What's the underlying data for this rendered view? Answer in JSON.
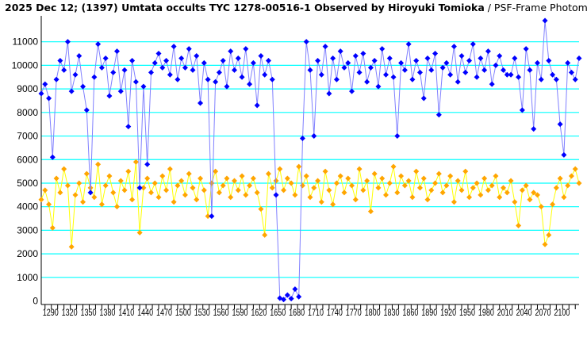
{
  "chart_data": {
    "type": "line",
    "title": "2025 Dec 12; (1397) Umtata occults TYC 1278-00516-1 Observed by Hiroyuki Tomioka",
    "subtitle": "/ PSF-Frame Photometry /",
    "xlabel": "",
    "ylabel": "",
    "xlim": [
      1284,
      2136
    ],
    "ylim": [
      -150,
      12100
    ],
    "grid": true,
    "grid_color": "#00ffff",
    "yticks": [
      0,
      1000,
      2000,
      3000,
      4000,
      5000,
      6000,
      7000,
      8000,
      9000,
      10000,
      11000
    ],
    "xticks": [
      1290,
      1320,
      1350,
      1380,
      1410,
      1440,
      1470,
      1500,
      1530,
      1560,
      1590,
      1620,
      1650,
      1680,
      1710,
      1740,
      1770,
      1800,
      1830,
      1860,
      1890,
      1920,
      1950,
      1980,
      2010,
      2040,
      2070,
      2100
    ],
    "x": [
      1284,
      1290,
      1296,
      1302,
      1308,
      1314,
      1320,
      1326,
      1332,
      1338,
      1344,
      1350,
      1356,
      1362,
      1368,
      1374,
      1380,
      1386,
      1392,
      1398,
      1404,
      1410,
      1416,
      1422,
      1428,
      1434,
      1440,
      1446,
      1452,
      1458,
      1464,
      1470,
      1476,
      1482,
      1488,
      1494,
      1500,
      1506,
      1512,
      1518,
      1524,
      1530,
      1536,
      1542,
      1548,
      1554,
      1560,
      1566,
      1572,
      1578,
      1584,
      1590,
      1596,
      1602,
      1608,
      1614,
      1620,
      1626,
      1632,
      1638,
      1644,
      1650,
      1656,
      1662,
      1668,
      1674,
      1680,
      1686,
      1692,
      1698,
      1704,
      1710,
      1716,
      1722,
      1728,
      1734,
      1740,
      1746,
      1752,
      1758,
      1764,
      1770,
      1776,
      1782,
      1788,
      1794,
      1800,
      1806,
      1812,
      1818,
      1824,
      1830,
      1836,
      1842,
      1848,
      1854,
      1860,
      1866,
      1872,
      1878,
      1884,
      1890,
      1896,
      1902,
      1908,
      1914,
      1920,
      1926,
      1932,
      1938,
      1944,
      1950,
      1956,
      1962,
      1968,
      1974,
      1980,
      1986,
      1992,
      1998,
      2004,
      2010,
      2016,
      2022,
      2028,
      2034,
      2040,
      2046,
      2052,
      2058,
      2064,
      2070,
      2076,
      2082,
      2088,
      2094,
      2100,
      2106,
      2112,
      2118,
      2124,
      2130,
      2136
    ],
    "series": [
      {
        "color": "#0000ff",
        "line_color": "#8080ff",
        "values": [
          8800,
          9200,
          8600,
          6100,
          9400,
          10200,
          9800,
          11000,
          8900,
          9600,
          10400,
          9100,
          8100,
          4600,
          9500,
          10900,
          9900,
          10300,
          8700,
          9700,
          10600,
          8900,
          9800,
          7400,
          10200,
          9300,
          4800,
          9100,
          5800,
          9700,
          10100,
          10500,
          9900,
          10200,
          9600,
          10800,
          9400,
          10300,
          9900,
          10700,
          9800,
          10400,
          8400,
          10100,
          9400,
          3600,
          9300,
          9700,
          10200,
          9100,
          10600,
          9800,
          10300,
          9500,
          10700,
          9200,
          10100,
          8300,
          10400,
          9600,
          10200,
          9400,
          4500,
          120,
          60,
          250,
          100,
          500,
          180,
          6900,
          11000,
          9800,
          7000,
          10200,
          9600,
          10800,
          8800,
          10300,
          9400,
          10600,
          9900,
          10100,
          8900,
          10400,
          9700,
          10500,
          9300,
          9900,
          10200,
          9100,
          10700,
          9600,
          10300,
          9500,
          7000,
          10100,
          9800,
          10900,
          9400,
          10200,
          9700,
          8600,
          10300,
          9800,
          10500,
          7900,
          9900,
          10100,
          9600,
          10800,
          9300,
          10400,
          9700,
          10200,
          10900,
          9500,
          10300,
          9800,
          10600,
          9200,
          10000,
          10400,
          9800,
          9600,
          9600,
          10300,
          9500,
          8100,
          10700,
          9800,
          7300,
          10100,
          9400,
          11900,
          10200,
          9600,
          9400,
          7500,
          6200,
          10100,
          9700,
          9400,
          10300
        ]
      },
      {
        "color": "#ffa500",
        "line_color": "#ffff00",
        "values": [
          4300,
          4700,
          4100,
          3100,
          5200,
          4600,
          5600,
          4900,
          2300,
          4500,
          5000,
          4200,
          5400,
          4800,
          4400,
          5800,
          4100,
          4900,
          5300,
          4600,
          4000,
          5100,
          4700,
          5500,
          4300,
          5900,
          2900,
          4800,
          5200,
          4600,
          5000,
          4400,
          5300,
          4700,
          5600,
          4200,
          4900,
          5100,
          4500,
          5400,
          4800,
          4300,
          5200,
          4700,
          3600,
          5000,
          5500,
          4600,
          4900,
          5200,
          4400,
          5100,
          4700,
          5300,
          4500,
          4900,
          5200,
          4600,
          3900,
          2800,
          5400,
          4800,
          5100,
          5600,
          4700,
          5200,
          5000,
          4500,
          5700,
          4900,
          5300,
          4400,
          4800,
          5100,
          4200,
          5500,
          4700,
          4100,
          5000,
          5300,
          4600,
          5200,
          4900,
          4300,
          5600,
          4700,
          5100,
          3800,
          5400,
          4800,
          5200,
          4500,
          5000,
          5700,
          4600,
          5300,
          4900,
          5100,
          4400,
          5500,
          4800,
          5200,
          4300,
          4700,
          5000,
          5400,
          4600,
          4900,
          5300,
          4200,
          5100,
          4700,
          5500,
          4400,
          4800,
          5000,
          4500,
          5200,
          4700,
          4900,
          5300,
          4400,
          4800,
          4600,
          5100,
          4200,
          3200,
          4700,
          4900,
          4300,
          4600,
          4500,
          4000,
          2400,
          2800,
          4100,
          4800,
          5200,
          4400,
          4900,
          5300,
          5600,
          5000
        ]
      }
    ]
  }
}
